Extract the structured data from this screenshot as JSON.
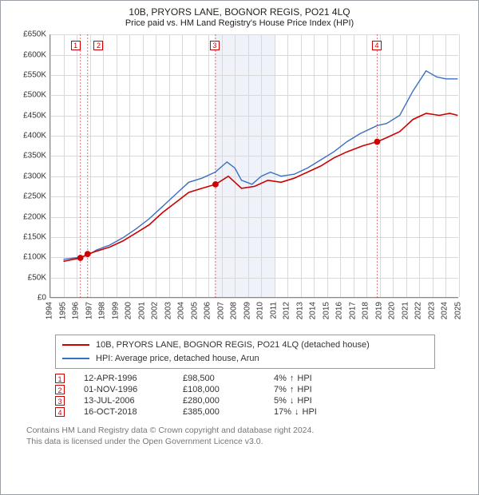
{
  "title": "10B, PRYORS LANE, BOGNOR REGIS, PO21 4LQ",
  "subtitle": "Price paid vs. HM Land Registry's House Price Index (HPI)",
  "chart": {
    "type": "line",
    "x_domain": [
      1994,
      2025
    ],
    "y_domain": [
      0,
      650
    ],
    "y_ticks": [
      0,
      50,
      100,
      150,
      200,
      250,
      300,
      350,
      400,
      450,
      500,
      550,
      600,
      650
    ],
    "y_tick_labels": [
      "£0",
      "£50K",
      "£100K",
      "£150K",
      "£200K",
      "£250K",
      "£300K",
      "£350K",
      "£400K",
      "£450K",
      "£500K",
      "£550K",
      "£600K",
      "£650K"
    ],
    "x_ticks": [
      1994,
      1995,
      1996,
      1997,
      1998,
      1999,
      2000,
      2001,
      2002,
      2003,
      2004,
      2005,
      2006,
      2007,
      2008,
      2009,
      2010,
      2011,
      2012,
      2013,
      2014,
      2015,
      2016,
      2017,
      2018,
      2019,
      2020,
      2021,
      2022,
      2023,
      2024,
      2025
    ],
    "grid_color": "#d9d9d9",
    "background": "#ffffff",
    "shaded_band": {
      "from": 2006.5,
      "to": 2011.0,
      "fill": "#e9eef6"
    },
    "series": {
      "property": {
        "label": "10B, PRYORS LANE, BOGNOR REGIS, PO21 4LQ (detached house)",
        "color": "#cc0000",
        "width": 1.6,
        "points": [
          [
            1995.0,
            90
          ],
          [
            1996.3,
            98.5
          ],
          [
            1996.85,
            108
          ],
          [
            1997.5,
            115
          ],
          [
            1998.5,
            125
          ],
          [
            1999.5,
            140
          ],
          [
            2000.5,
            160
          ],
          [
            2001.5,
            180
          ],
          [
            2002.5,
            210
          ],
          [
            2003.5,
            235
          ],
          [
            2004.5,
            260
          ],
          [
            2005.5,
            270
          ],
          [
            2006.55,
            280
          ],
          [
            2007.5,
            300
          ],
          [
            2008.5,
            270
          ],
          [
            2009.5,
            275
          ],
          [
            2010.5,
            290
          ],
          [
            2011.5,
            285
          ],
          [
            2012.5,
            295
          ],
          [
            2013.5,
            310
          ],
          [
            2014.5,
            325
          ],
          [
            2015.5,
            345
          ],
          [
            2016.5,
            360
          ],
          [
            2017.7,
            375
          ],
          [
            2018.8,
            385
          ],
          [
            2019.5,
            395
          ],
          [
            2020.5,
            410
          ],
          [
            2021.5,
            440
          ],
          [
            2022.5,
            455
          ],
          [
            2023.5,
            450
          ],
          [
            2024.3,
            455
          ],
          [
            2024.9,
            450
          ]
        ]
      },
      "hpi": {
        "label": "HPI: Average price, detached house, Arun",
        "color": "#3b6fbf",
        "width": 1.4,
        "points": [
          [
            1995.0,
            95
          ],
          [
            1996.3,
            100
          ],
          [
            1996.85,
            105
          ],
          [
            1997.5,
            118
          ],
          [
            1998.5,
            130
          ],
          [
            1999.5,
            148
          ],
          [
            2000.5,
            170
          ],
          [
            2001.5,
            195
          ],
          [
            2002.5,
            225
          ],
          [
            2003.5,
            255
          ],
          [
            2004.5,
            285
          ],
          [
            2005.5,
            295
          ],
          [
            2006.5,
            310
          ],
          [
            2007.4,
            335
          ],
          [
            2008.0,
            320
          ],
          [
            2008.5,
            290
          ],
          [
            2009.3,
            280
          ],
          [
            2010.0,
            300
          ],
          [
            2010.7,
            310
          ],
          [
            2011.5,
            300
          ],
          [
            2012.5,
            305
          ],
          [
            2013.5,
            320
          ],
          [
            2014.5,
            340
          ],
          [
            2015.5,
            360
          ],
          [
            2016.5,
            385
          ],
          [
            2017.5,
            405
          ],
          [
            2018.8,
            425
          ],
          [
            2019.5,
            430
          ],
          [
            2020.5,
            450
          ],
          [
            2021.5,
            510
          ],
          [
            2022.5,
            560
          ],
          [
            2023.3,
            545
          ],
          [
            2024.0,
            540
          ],
          [
            2024.9,
            540
          ]
        ]
      }
    },
    "markers": [
      {
        "idx": "1",
        "x": 1996.28,
        "y": 98.5,
        "box_x": 1995.55,
        "box_y_top": 8,
        "pair_offset": 0
      },
      {
        "idx": "2",
        "x": 1996.83,
        "y": 108,
        "box_x": 1996.45,
        "box_y_top": 8,
        "pair_offset": 14
      },
      {
        "idx": "3",
        "x": 2006.53,
        "y": 280,
        "box_x": 2006.1,
        "box_y_top": 8,
        "pair_offset": 0
      },
      {
        "idx": "4",
        "x": 2018.79,
        "y": 385,
        "box_x": 2018.4,
        "box_y_top": 8,
        "pair_offset": 0
      }
    ],
    "marker_line_color": "#cc0000",
    "marker_dot_radius": 3.4,
    "tick_fontsize": 10,
    "label_color": "#333333"
  },
  "legend": {
    "rows": [
      {
        "color": "#cc0000",
        "text": "10B, PRYORS LANE, BOGNOR REGIS, PO21 4LQ (detached house)"
      },
      {
        "color": "#3b6fbf",
        "text": "HPI: Average price, detached house, Arun"
      }
    ]
  },
  "transactions": [
    {
      "idx": "1",
      "date": "12-APR-1996",
      "price": "£98,500",
      "diff_pct": "4%",
      "dir": "up",
      "suffix": "HPI"
    },
    {
      "idx": "2",
      "date": "01-NOV-1996",
      "price": "£108,000",
      "diff_pct": "7%",
      "dir": "up",
      "suffix": "HPI"
    },
    {
      "idx": "3",
      "date": "13-JUL-2006",
      "price": "£280,000",
      "diff_pct": "5%",
      "dir": "down",
      "suffix": "HPI"
    },
    {
      "idx": "4",
      "date": "16-OCT-2018",
      "price": "£385,000",
      "diff_pct": "17%",
      "dir": "down",
      "suffix": "HPI"
    }
  ],
  "footnote_l1": "Contains HM Land Registry data © Crown copyright and database right 2024.",
  "footnote_l2": "This data is licensed under the Open Government Licence v3.0."
}
